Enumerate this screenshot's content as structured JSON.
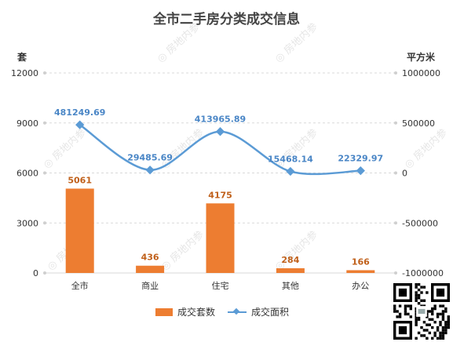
{
  "title": "全市二手房分类成交信息",
  "left_unit": "套",
  "right_unit": "平方米",
  "watermark": "房地内参",
  "colors": {
    "bar": "#ed7d31",
    "line": "#5b9bd5",
    "bar_label": "#c0601a",
    "line_label": "#4a86c6"
  },
  "legend": {
    "bar_label": "成交套数",
    "line_label": "成交面积"
  },
  "chart_data": {
    "type": "bar",
    "categories": [
      "全市",
      "商业",
      "住宅",
      "其他",
      "办公"
    ],
    "series": [
      {
        "name": "成交套数",
        "type": "bar",
        "axis": "left",
        "values": [
          5061,
          436,
          4175,
          284,
          166
        ],
        "labels": [
          "5061",
          "436",
          "4175",
          "284",
          "166"
        ]
      },
      {
        "name": "成交面积",
        "type": "line",
        "axis": "right",
        "smooth": true,
        "values": [
          481249.69,
          29485.69,
          413965.89,
          15468.14,
          22329.97
        ],
        "labels": [
          "481249.69",
          "29485.69",
          "413965.89",
          "15468.14",
          "22329.97"
        ]
      }
    ],
    "left_axis": {
      "ylim": [
        0,
        12000
      ],
      "ticks": [
        0,
        3000,
        6000,
        9000,
        12000
      ],
      "tick_labels": [
        "0",
        "3000",
        "6000",
        "9000",
        "12000"
      ]
    },
    "right_axis": {
      "ylim": [
        -1000000,
        1000000
      ],
      "ticks": [
        -1000000,
        -500000,
        0,
        500000,
        1000000
      ],
      "tick_labels": [
        "-1000000",
        "-500000",
        "0",
        "500000",
        "1000000"
      ]
    },
    "grid": true,
    "legend_position": "bottom"
  }
}
